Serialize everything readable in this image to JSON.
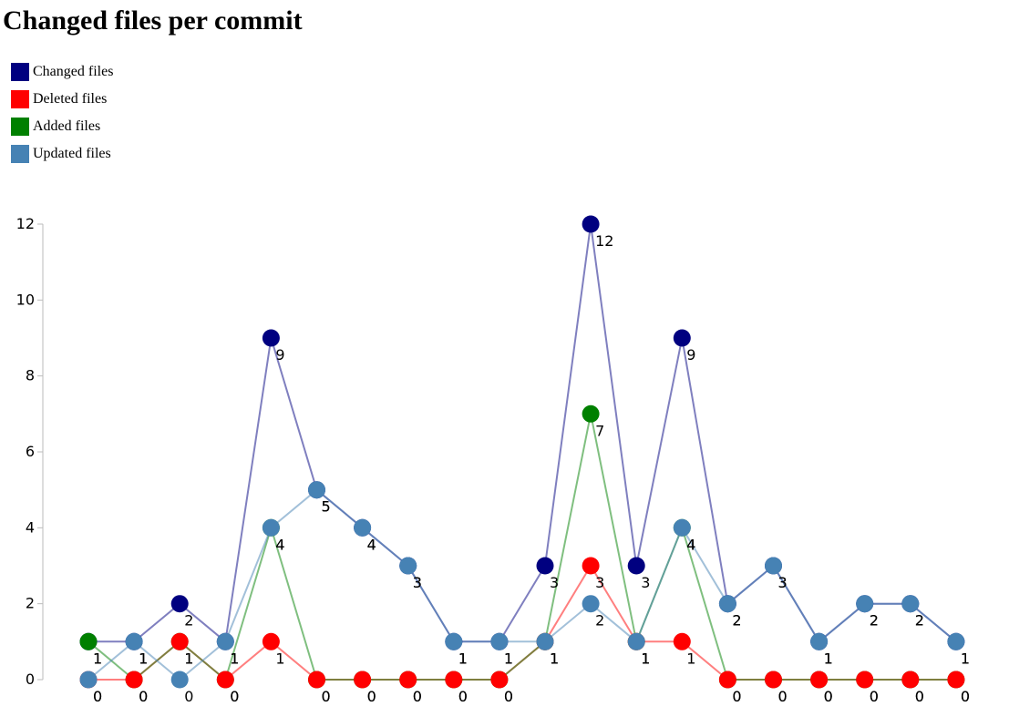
{
  "title": "Changed files per commit",
  "legend": [
    {
      "label": "Changed files",
      "color": "#000080"
    },
    {
      "label": "Deleted files",
      "color": "#ff0000"
    },
    {
      "label": "Added files",
      "color": "#008000"
    },
    {
      "label": "Updated files",
      "color": "#4682b4"
    }
  ],
  "chart_data": {
    "type": "line",
    "title": "Changed files per commit",
    "x": [
      1,
      2,
      3,
      4,
      5,
      6,
      7,
      8,
      9,
      10,
      11,
      12,
      13,
      14,
      15,
      16,
      17,
      18,
      19,
      20
    ],
    "ylim": [
      0,
      12
    ],
    "yticks": [
      "0",
      "2",
      "4",
      "6",
      "8",
      "10",
      "12"
    ],
    "legend_position": "top-left",
    "series": [
      {
        "name": "Changed files",
        "color": "#000080",
        "values": [
          1,
          1,
          2,
          1,
          9,
          5,
          4,
          3,
          1,
          1,
          3,
          12,
          3,
          9,
          2,
          3,
          1,
          2,
          2,
          1
        ],
        "labeled": true
      },
      {
        "name": "Deleted files",
        "color": "#ff0000",
        "values": [
          0,
          0,
          1,
          0,
          1,
          0,
          0,
          0,
          0,
          0,
          1,
          3,
          1,
          1,
          0,
          0,
          0,
          0,
          0,
          0
        ],
        "labeled": true
      },
      {
        "name": "Added files",
        "color": "#008000",
        "values": [
          1,
          0,
          1,
          0,
          4,
          0,
          0,
          0,
          0,
          0,
          1,
          7,
          1,
          4,
          0,
          0,
          0,
          0,
          0,
          0
        ],
        "labeled": true
      },
      {
        "name": "Updated files",
        "color": "#4682b4",
        "values": [
          0,
          1,
          0,
          1,
          4,
          5,
          4,
          3,
          1,
          1,
          1,
          2,
          1,
          4,
          2,
          3,
          1,
          2,
          2,
          1
        ],
        "labeled": true
      }
    ]
  }
}
